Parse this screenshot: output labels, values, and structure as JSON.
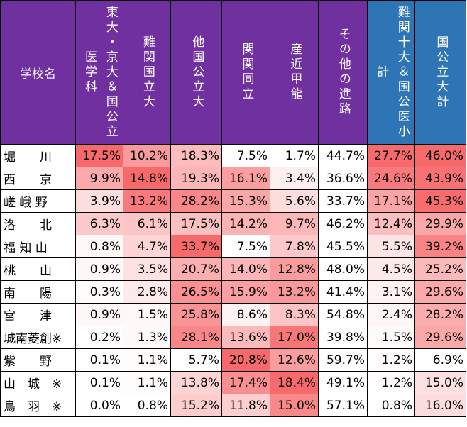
{
  "header": {
    "school": "学校名",
    "columns": [
      {
        "label": "東大・京大＆国公立医学科",
        "style": "purple",
        "vertical_text": "東大・京大＆国公立医学科"
      },
      {
        "label": "難関国立大",
        "style": "purple",
        "vertical_text": "難関国立大"
      },
      {
        "label": "他国公立大",
        "style": "purple",
        "vertical_text": "他国公立大"
      },
      {
        "label": "関関同立",
        "style": "purple",
        "vertical_text": "関関同立"
      },
      {
        "label": "産近甲龍",
        "style": "purple",
        "vertical_text": "産近甲龍"
      },
      {
        "label": "その他の進路",
        "style": "purple",
        "vertical_text": "その他の進路"
      },
      {
        "label": "難関十大＆国公医小計",
        "style": "blue",
        "vertical_text": "難関十大＆国公医小計"
      },
      {
        "label": "国公立大計",
        "style": "blue",
        "vertical_text": "国公立大計"
      }
    ]
  },
  "rows": [
    {
      "school": "堀　　川",
      "values": [
        "17.5%",
        "10.2%",
        "18.3%",
        "7.5%",
        "1.7%",
        "44.7%",
        "27.7%",
        "46.0%"
      ]
    },
    {
      "school": "西　　京",
      "values": [
        "9.9%",
        "14.8%",
        "19.3%",
        "16.1%",
        "3.4%",
        "36.6%",
        "24.6%",
        "43.9%"
      ]
    },
    {
      "school": "嵯 峨 野",
      "values": [
        "3.9%",
        "13.2%",
        "28.2%",
        "15.3%",
        "5.6%",
        "33.7%",
        "17.1%",
        "45.3%"
      ]
    },
    {
      "school": "洛　　北",
      "values": [
        "6.3%",
        "6.1%",
        "17.5%",
        "14.2%",
        "9.7%",
        "46.2%",
        "12.4%",
        "29.9%"
      ]
    },
    {
      "school": "福 知 山",
      "values": [
        "0.8%",
        "4.7%",
        "33.7%",
        "7.5%",
        "7.8%",
        "45.5%",
        "5.5%",
        "39.2%"
      ]
    },
    {
      "school": "桃　　山",
      "values": [
        "0.9%",
        "3.5%",
        "20.7%",
        "14.0%",
        "12.8%",
        "48.0%",
        "4.5%",
        "25.2%"
      ]
    },
    {
      "school": "南　　陽",
      "values": [
        "0.3%",
        "2.8%",
        "26.5%",
        "15.9%",
        "13.2%",
        "41.4%",
        "3.1%",
        "29.6%"
      ]
    },
    {
      "school": "宮　　津",
      "values": [
        "0.9%",
        "1.5%",
        "25.8%",
        "8.6%",
        "8.3%",
        "54.8%",
        "2.4%",
        "28.2%"
      ]
    },
    {
      "school": "城南菱創※",
      "values": [
        "0.2%",
        "1.3%",
        "28.1%",
        "13.6%",
        "17.0%",
        "39.8%",
        "1.5%",
        "29.6%"
      ]
    },
    {
      "school": "紫　　野",
      "values": [
        "0.1%",
        "1.1%",
        "5.7%",
        "20.8%",
        "12.6%",
        "59.7%",
        "1.2%",
        "6.9%"
      ]
    },
    {
      "school": "山　城　※",
      "values": [
        "0.1%",
        "1.1%",
        "13.8%",
        "17.4%",
        "18.4%",
        "49.1%",
        "1.2%",
        "15.0%"
      ]
    },
    {
      "school": "鳥　羽　※",
      "values": [
        "0.0%",
        "0.8%",
        "15.2%",
        "11.8%",
        "15.0%",
        "57.1%",
        "0.8%",
        "16.0%"
      ]
    }
  ],
  "colors": {
    "header_purple": "#7030a0",
    "header_blue": "#2e75b6",
    "heat_low": "#ffffff",
    "heat_high": "#f8696b"
  }
}
